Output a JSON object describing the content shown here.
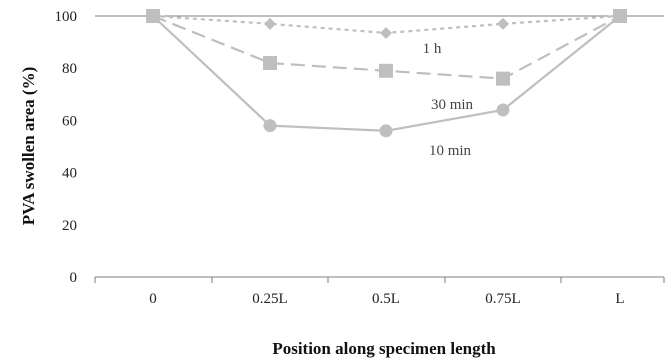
{
  "chart_data": {
    "type": "line",
    "categories": [
      "0",
      "0.25L",
      "0.5L",
      "0.75L",
      "L"
    ],
    "xlabel": "Position along specimen length",
    "ylabel": "PVA swollen area (%)",
    "ylim": [
      0,
      100
    ],
    "yticks": [
      "0",
      "20",
      "40",
      "60",
      "80",
      "100"
    ],
    "grid": false,
    "series": [
      {
        "name": "1 h",
        "values": [
          100,
          97,
          93.5,
          97,
          100
        ],
        "style": "dotted",
        "marker": "diamond",
        "color": "#bfbfbf"
      },
      {
        "name": "30 min",
        "values": [
          100,
          82,
          79,
          76,
          100
        ],
        "style": "dashed",
        "marker": "square",
        "color": "#bfbfbf"
      },
      {
        "name": "10 min",
        "values": [
          100,
          58,
          56,
          64,
          100
        ],
        "style": "solid",
        "marker": "circle",
        "color": "#bfbfbf"
      }
    ]
  }
}
